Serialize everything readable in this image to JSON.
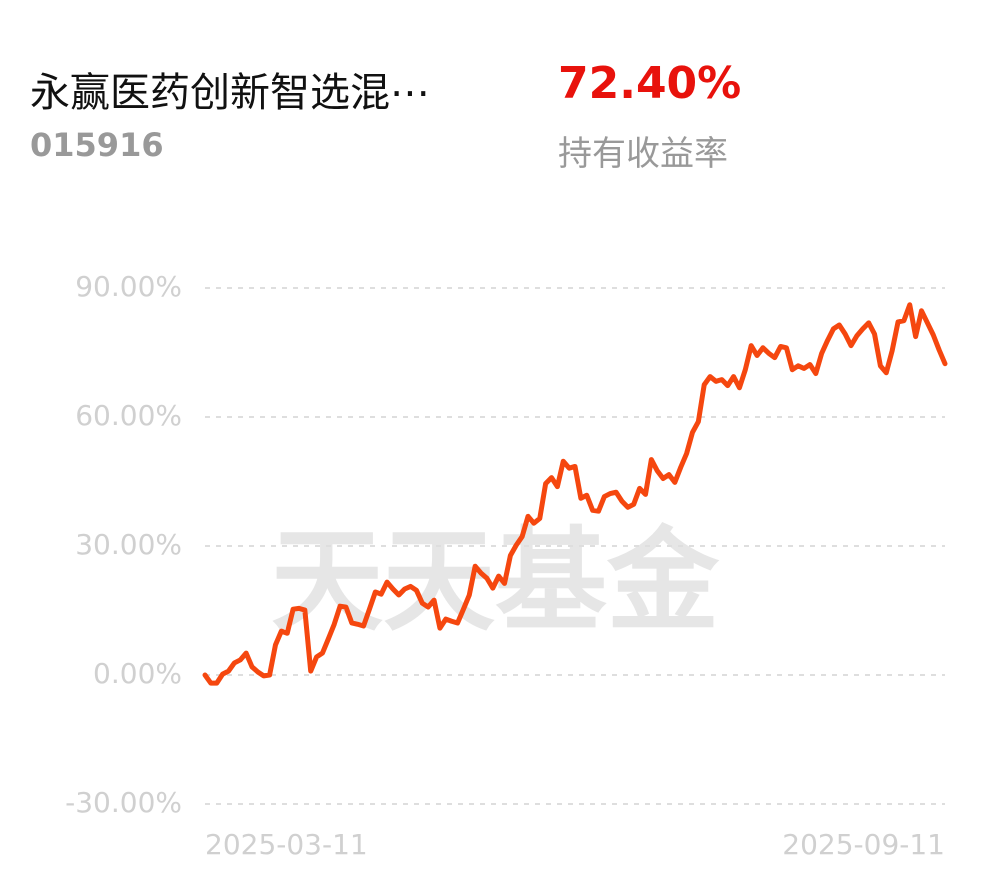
{
  "header": {
    "fund_name": "永赢医药创新智选混⋯",
    "fund_code": "015916",
    "return_value": "72.40%",
    "return_label": "持有收益率"
  },
  "chart_data": {
    "type": "line",
    "watermark": "天天基金",
    "categories": [
      "2025-03-11",
      null,
      null,
      null,
      null,
      null,
      null,
      null,
      null,
      null,
      null,
      null,
      null,
      null,
      null,
      null,
      null,
      null,
      null,
      null,
      null,
      null,
      null,
      null,
      null,
      null,
      null,
      null,
      null,
      null,
      null,
      null,
      null,
      null,
      null,
      null,
      null,
      null,
      null,
      null,
      null,
      null,
      null,
      null,
      null,
      null,
      null,
      null,
      null,
      null,
      null,
      null,
      null,
      null,
      null,
      null,
      null,
      null,
      null,
      null,
      null,
      null,
      null,
      null,
      null,
      null,
      null,
      null,
      null,
      null,
      null,
      null,
      null,
      null,
      null,
      null,
      null,
      null,
      null,
      null,
      null,
      null,
      null,
      null,
      null,
      null,
      null,
      null,
      null,
      null,
      null,
      null,
      null,
      null,
      null,
      null,
      null,
      null,
      null,
      null,
      null,
      null,
      null,
      null,
      null,
      null,
      null,
      null,
      null,
      null,
      null,
      null,
      null,
      null,
      null,
      null,
      null,
      null,
      null,
      null,
      null,
      null,
      null,
      null,
      null,
      null,
      "2025-09-11"
    ],
    "series": [
      {
        "color": "#f5470f",
        "values": [
          0,
          -1.9,
          -1.9,
          0.2,
          0.9,
          2.8,
          3.5,
          5.1,
          1.9,
          0.7,
          -0.2,
          0,
          7.0,
          10.2,
          9.7,
          15.3,
          15.5,
          15.1,
          0.9,
          4.2,
          5.1,
          8.4,
          11.8,
          16.0,
          15.8,
          12.1,
          11.8,
          11.4,
          15.3,
          19.3,
          18.8,
          21.6,
          20.0,
          18.6,
          20.0,
          20.6,
          19.7,
          16.7,
          15.8,
          17.4,
          10.9,
          13.0,
          12.5,
          12.1,
          15.3,
          18.6,
          25.3,
          23.7,
          22.5,
          20.2,
          23.0,
          21.3,
          27.8,
          30.2,
          32.2,
          36.9,
          35.3,
          36.4,
          44.5,
          45.9,
          43.8,
          49.7,
          48.1,
          48.5,
          41.1,
          41.8,
          38.3,
          38.1,
          41.5,
          42.2,
          42.5,
          40.4,
          39.0,
          39.7,
          43.4,
          42.0,
          50.1,
          47.5,
          45.7,
          46.6,
          44.8,
          48.3,
          51.5,
          56.4,
          58.9,
          67.5,
          69.4,
          68.3,
          68.7,
          67.3,
          69.4,
          66.8,
          71.0,
          76.6,
          74.3,
          76.1,
          74.8,
          73.8,
          76.4,
          76.1,
          71.0,
          71.9,
          71.3,
          72.2,
          70.1,
          74.8,
          77.8,
          80.5,
          81.4,
          79.3,
          76.6,
          78.9,
          80.5,
          81.9,
          79.3,
          71.9,
          70.3,
          75.4,
          82.1,
          82.4,
          86.1,
          78.7,
          84.7,
          81.9,
          79.1,
          75.6,
          72.4
        ]
      }
    ],
    "ylim": [
      -30,
      90
    ],
    "yticks": [
      {
        "value": 90,
        "label": "90.00%"
      },
      {
        "value": 60,
        "label": "60.00%"
      },
      {
        "value": 30,
        "label": "30.00%"
      },
      {
        "value": 0,
        "label": "0.00%"
      },
      {
        "value": -30,
        "label": "-30.00%"
      }
    ],
    "grid": true
  }
}
